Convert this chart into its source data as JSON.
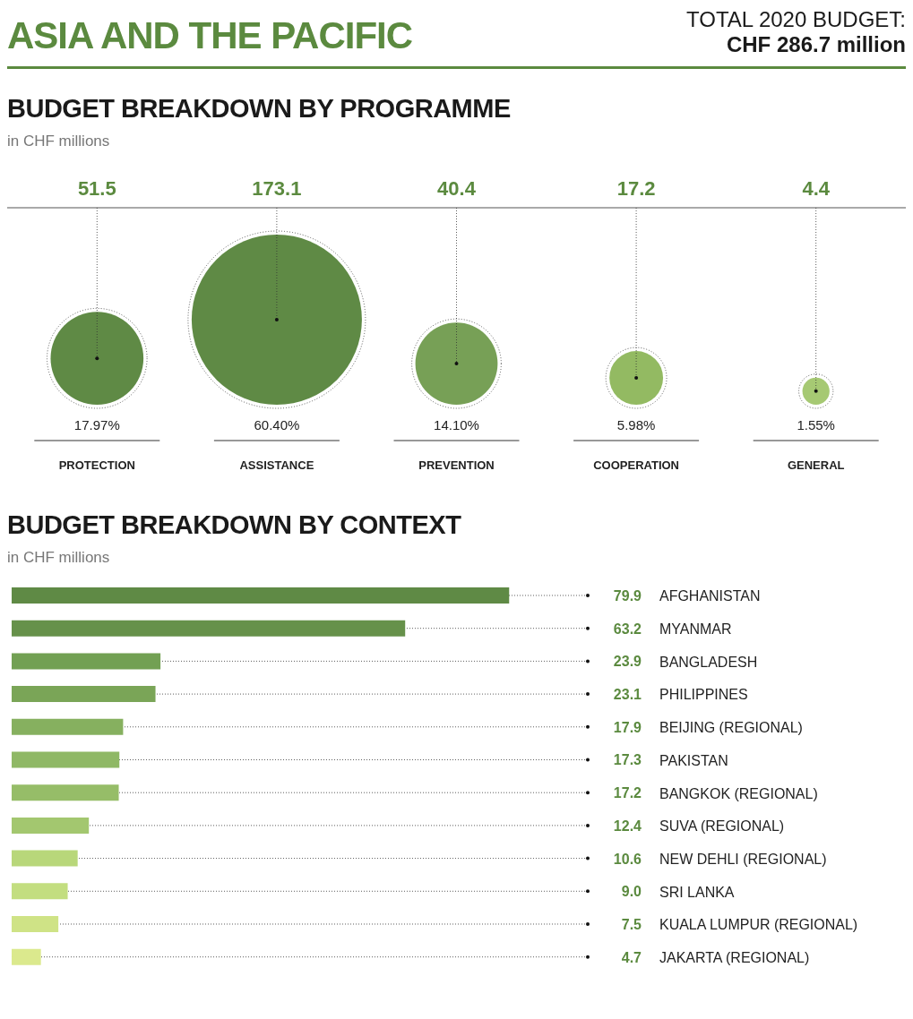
{
  "chart_data": [
    {
      "type": "other",
      "title": "BUDGET BREAKDOWN BY PROGRAMME",
      "subtitle": "in CHF millions",
      "categories": [
        "PROTECTION",
        "ASSISTANCE",
        "PREVENTION",
        "COOPERATION",
        "GENERAL"
      ],
      "values": [
        51.5,
        173.1,
        40.4,
        17.2,
        4.4
      ],
      "colors": [
        "#5f8a45",
        "#5f8a45",
        "#77a056",
        "#93ba62",
        "#a6c973"
      ],
      "data_labels": true,
      "annotations": [
        "ASIA AND THE PACIFIC",
        "TOTAL 2020 BUDGET:",
        "CHF 286.7 million",
        {
          "text": "17.97%",
          "x": "PROTECTION"
        },
        {
          "text": "60.40%",
          "x": "ASSISTANCE"
        },
        {
          "text": "14.10%",
          "x": "PREVENTION"
        },
        {
          "text": "5.98%",
          "x": "COOPERATION"
        },
        {
          "text": "1.55%",
          "x": "GENERAL"
        }
      ]
    },
    {
      "type": "bar",
      "orientation": "horizontal",
      "title": "BUDGET BREAKDOWN BY CONTEXT",
      "subtitle": "in CHF millions",
      "categories": [
        "AFGHANISTAN",
        "MYANMAR",
        "BANGLADESH",
        "PHILIPPINES",
        "BEIJING (REGIONAL)",
        "PAKISTAN",
        "BANGKOK (REGIONAL)",
        "SUVA (REGIONAL)",
        "NEW DEHLI (REGIONAL)",
        "SRI LANKA",
        "KUALA LUMPUR (REGIONAL)",
        "JAKARTA (REGIONAL)"
      ],
      "values": [
        79.9,
        63.2,
        23.9,
        23.1,
        17.9,
        17.3,
        17.2,
        12.4,
        10.6,
        9.0,
        7.5,
        4.7
      ],
      "value_labels": [
        "79.9",
        "63.2",
        "23.9",
        "23.1",
        "17.9",
        "17.3",
        "17.2",
        "12.4",
        "10.6",
        "9.0",
        "7.5",
        "4.7"
      ],
      "colors": [
        "#5f8a45",
        "#66914a",
        "#72a053",
        "#7aa557",
        "#86b05f",
        "#8fb865",
        "#96bd68",
        "#a3c76f",
        "#b8d77a",
        "#c3de80",
        "#cfe386",
        "#dbe98d"
      ],
      "grid": "y",
      "tick_labels": false
    }
  ]
}
